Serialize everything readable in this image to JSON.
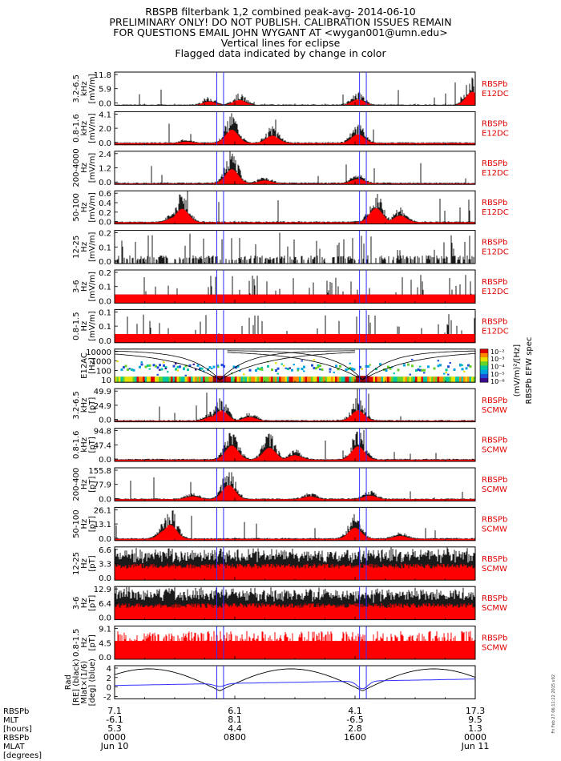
{
  "header": {
    "lines": [
      "RBSPB filterbank 1,2 combined peak-avg- 2014-06-10",
      "PRELIMINARY ONLY! DO NOT PUBLISH. CALIBRATION ISSUES REMAIN",
      "FOR QUESTIONS EMAIL JOHN WYGANT AT <wygan001@umn.edu>",
      "Vertical lines for eclipse",
      "Flagged data indicated by change in color"
    ]
  },
  "chart_data": {
    "type": "line",
    "x_range": [
      "2014-06-10 00:00",
      "2014-06-11 00:00"
    ],
    "eclipse_lines_hours": [
      6.8,
      7.25,
      16.3,
      16.75
    ],
    "panels": [
      {
        "id": "e1",
        "label": [
          "3.2-6.5",
          "kHz",
          "[mV/m]"
        ],
        "ticks": [
          "11.8",
          "5.9",
          "0.0"
        ],
        "ylim": [
          0,
          11.8
        ],
        "right": [
          "RBSPb",
          "E12DC"
        ],
        "style": "spiky",
        "bg": 0
      },
      {
        "id": "e2",
        "label": [
          "0.8-1.6",
          "kHz",
          "[mV/m]"
        ],
        "ticks": [
          "4.1",
          "2.0",
          "0.0"
        ],
        "ylim": [
          0,
          4.1
        ],
        "right": [
          "RBSPb",
          "E12DC"
        ],
        "style": "spiky",
        "bg": 0.05
      },
      {
        "id": "e3",
        "label": [
          "200-4000",
          "Hz",
          "[mV/m]"
        ],
        "ticks": [
          "2.4",
          "1.2",
          "0.0"
        ],
        "ylim": [
          0,
          2.4
        ],
        "right": [
          "RBSPb",
          "E12DC"
        ],
        "style": "spiky",
        "bg": 0.03
      },
      {
        "id": "e4",
        "label": [
          "50-100",
          "Hz",
          "[mV/m]"
        ],
        "ticks": [
          "0.6",
          "0.4",
          "0.2",
          "0.0"
        ],
        "ylim": [
          0,
          0.6
        ],
        "right": [
          "RBSPb",
          "E12DC"
        ],
        "style": "spiky",
        "bg": 0.05
      },
      {
        "id": "e5",
        "label": [
          "12-25",
          "Hz",
          "[mV/m]"
        ],
        "ticks": [
          "0.2",
          "0.1",
          "0.0"
        ],
        "ylim": [
          0,
          0.2
        ],
        "right": [
          "RBSPb",
          "E12DC"
        ],
        "style": "bars",
        "bg": 0.06
      },
      {
        "id": "e6",
        "label": [
          "3-6",
          "Hz",
          "[mV/m]"
        ],
        "ticks": [
          "0.2",
          "0.1",
          "0.0"
        ],
        "ylim": [
          0,
          0.2
        ],
        "right": [
          "RBSPb",
          "E12DC"
        ],
        "style": "redfloor",
        "bg": 0.05
      },
      {
        "id": "e7",
        "label": [
          "0.8-1.5",
          "Hz",
          "[mV/m]"
        ],
        "ticks": [
          "0.1",
          "0.1",
          "0.0"
        ],
        "ylim": [
          0,
          0.15
        ],
        "right": [
          "RBSPb",
          "E12DC"
        ],
        "style": "redfloor",
        "bg": 0.05
      },
      {
        "id": "spec",
        "label": [
          "E12AC",
          "[Hz]"
        ],
        "ticks": [
          "10000",
          "1000",
          "100",
          "10"
        ],
        "right": [],
        "style": "spectrogram"
      },
      {
        "id": "b1",
        "label": [
          "3.2-6.5",
          "kHz",
          "[pT]"
        ],
        "ticks": [
          "49.9",
          "24.9",
          "0.0"
        ],
        "ylim": [
          0,
          49.9
        ],
        "right": [
          "RBSPb",
          "SCMW"
        ],
        "style": "spiky",
        "bg": 0.03
      },
      {
        "id": "b2",
        "label": [
          "0.8-1.6",
          "kHz",
          "[pT]"
        ],
        "ticks": [
          "94.8",
          "47.4",
          "0.0"
        ],
        "ylim": [
          0,
          94.8
        ],
        "right": [
          "RBSPb",
          "SCMW"
        ],
        "style": "spiky",
        "bg": 0.05
      },
      {
        "id": "b3",
        "label": [
          "200-400",
          "Hz",
          "[pT]"
        ],
        "ticks": [
          "155.8",
          "77.9",
          "0.0"
        ],
        "ylim": [
          0,
          155.8
        ],
        "right": [
          "RBSPb",
          "SCMW"
        ],
        "style": "spiky",
        "bg": 0.05
      },
      {
        "id": "b4",
        "label": [
          "50-100",
          "Hz",
          "[pT]"
        ],
        "ticks": [
          "26.1",
          "13.1",
          "0.0"
        ],
        "ylim": [
          0,
          26.1
        ],
        "right": [
          "RBSPb",
          "SCMW"
        ],
        "style": "spiky",
        "bg": 0.05
      },
      {
        "id": "b5",
        "label": [
          "12-25",
          "Hz",
          "[pT]"
        ],
        "ticks": [
          "6.6",
          "3.3",
          "0.0"
        ],
        "ylim": [
          0,
          6.6
        ],
        "right": [
          "RBSPb",
          "SCMW"
        ],
        "style": "dense",
        "bg": 0.5
      },
      {
        "id": "b6",
        "label": [
          "3-6",
          "Hz",
          "[pT]"
        ],
        "ticks": [
          "12.9",
          "6.4",
          "0.0"
        ],
        "ylim": [
          0,
          12.9
        ],
        "right": [
          "RBSPb",
          "SCMW"
        ],
        "style": "dense",
        "bg": 0.5
      },
      {
        "id": "b7",
        "label": [
          "0.8-1.5",
          "Hz",
          "[pT]"
        ],
        "ticks": [
          "9.1",
          "4.5",
          "0.0"
        ],
        "ylim": [
          0,
          9.1
        ],
        "right": [
          "RBSPb",
          "SCMW"
        ],
        "style": "redspikes",
        "bg": 0.55
      },
      {
        "id": "eph",
        "label": [
          "Rad",
          "[RE] (black)",
          "Mlat×(1/6)",
          "[deg] (blue)"
        ],
        "ticks": [
          "4",
          "2",
          "0",
          "-2"
        ],
        "right": [],
        "style": "ephem"
      }
    ],
    "colorbar": {
      "ticks": [
        "10⁻²",
        "10⁻³",
        "10⁻⁴",
        "10⁻⁵",
        "10⁻⁶"
      ],
      "label": "(mV/m)²/[Hz]",
      "title": "RBSPb EFW spec"
    },
    "x_axis": {
      "row_labels": [
        "RBSPb",
        "MLT",
        "[hours]",
        "RBSPb",
        "MLAT",
        "[degrees]"
      ],
      "columns": [
        {
          "rad": "7.1",
          "mlt": "-6.1",
          "mlat": "5.3",
          "time": "0000",
          "date": "Jun 10"
        },
        {
          "rad": "6.1",
          "mlt": "8.1",
          "mlat": "4.4",
          "time": "0800",
          "date": ""
        },
        {
          "rad": "4.1",
          "mlt": "-6.5",
          "mlat": "2.8",
          "time": "1600",
          "date": ""
        },
        {
          "rad": "17.3",
          "mlt": "9.5",
          "mlat": "1.3",
          "time": "0000",
          "date": "Jun 11"
        }
      ]
    },
    "timestamp": "Fri Feb 27 06:11:22 2015 v02"
  }
}
